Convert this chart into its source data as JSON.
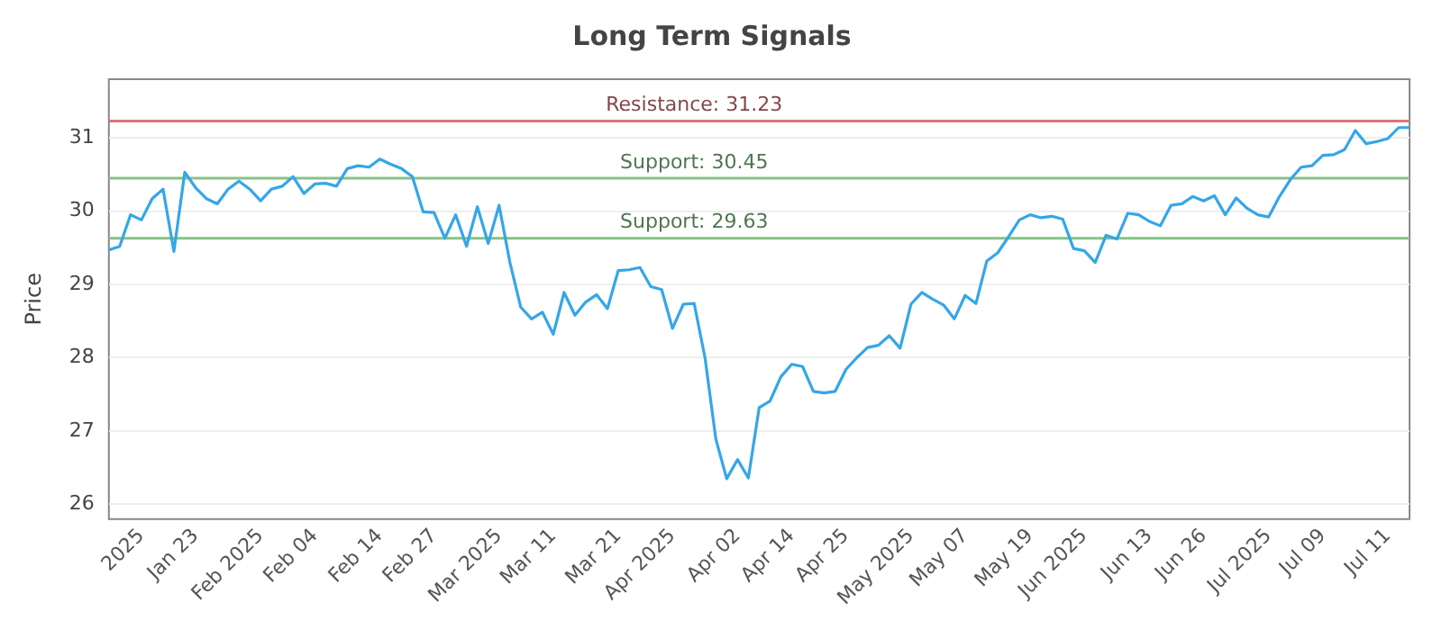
{
  "chart_data": {
    "type": "line",
    "title": "Long Term Signals",
    "ylabel": "Price",
    "categories": [
      null,
      null,
      null,
      "2025",
      null,
      null,
      null,
      null,
      "Jan 23",
      null,
      null,
      null,
      null,
      null,
      "Feb 2025",
      null,
      null,
      null,
      null,
      "Feb 04",
      null,
      null,
      null,
      null,
      null,
      "Feb 14",
      null,
      null,
      null,
      null,
      "Feb 27",
      null,
      null,
      null,
      null,
      null,
      "Mar 2025",
      null,
      null,
      null,
      null,
      "Mar 11",
      null,
      null,
      null,
      null,
      null,
      "Mar 21",
      null,
      null,
      null,
      null,
      "Apr 2025",
      null,
      null,
      null,
      null,
      null,
      "Apr 02",
      null,
      null,
      null,
      null,
      "Apr 14",
      null,
      null,
      null,
      null,
      "Apr 25",
      null,
      null,
      null,
      null,
      null,
      "May 2025",
      null,
      null,
      null,
      null,
      "May 07",
      null,
      null,
      null,
      null,
      null,
      "May 19",
      null,
      null,
      null,
      null,
      "Jun 2025",
      null,
      null,
      null,
      null,
      null,
      "Jun 13",
      null,
      null,
      null,
      null,
      "Jun 26",
      null,
      null,
      null,
      null,
      null,
      "Jul 2025",
      null,
      null,
      null,
      null,
      "Jul 09",
      null,
      null,
      null,
      null,
      null,
      "Jul 11",
      null,
      null
    ],
    "series": [
      {
        "color": "#35a6e8",
        "values": [
          29.47,
          29.52,
          29.95,
          29.88,
          30.17,
          30.3,
          29.45,
          30.53,
          30.32,
          30.17,
          30.1,
          30.3,
          30.41,
          30.3,
          30.14,
          30.3,
          30.34,
          30.47,
          30.24,
          30.37,
          30.38,
          30.34,
          30.58,
          30.62,
          30.6,
          30.71,
          30.64,
          30.58,
          30.47,
          29.99,
          29.98,
          29.63,
          29.95,
          29.52,
          30.06,
          29.56,
          30.08,
          29.3,
          28.69,
          28.53,
          28.62,
          28.32,
          28.89,
          28.58,
          28.76,
          28.86,
          28.67,
          29.19,
          29.2,
          29.23,
          28.97,
          28.93,
          28.4,
          28.73,
          28.74,
          28.0,
          26.89,
          26.35,
          26.61,
          26.36,
          27.32,
          27.41,
          27.74,
          27.91,
          27.88,
          27.54,
          27.52,
          27.54,
          27.84,
          28.0,
          28.14,
          28.17,
          28.3,
          28.13,
          28.73,
          28.89,
          28.8,
          28.72,
          28.53,
          28.85,
          28.74,
          29.32,
          29.43,
          29.65,
          29.88,
          29.95,
          29.91,
          29.93,
          29.89,
          29.49,
          29.46,
          29.3,
          29.67,
          29.62,
          29.97,
          29.95,
          29.86,
          29.8,
          30.08,
          30.1,
          30.2,
          30.14,
          30.21,
          29.95,
          30.18,
          30.04,
          29.95,
          29.92,
          30.2,
          30.43,
          30.6,
          30.62,
          30.76,
          30.77,
          30.84,
          31.1,
          30.92,
          30.95,
          30.99,
          31.14,
          31.14
        ]
      }
    ],
    "ylim": [
      25.8,
      31.8
    ],
    "yticks": [
      26,
      27,
      28,
      29,
      30,
      31
    ],
    "grid": "y",
    "legend": false,
    "marker": "none",
    "line_style": "solid",
    "ref_lines": [
      {
        "axis": "y",
        "value": 31.23,
        "label": "Resistance: 31.23",
        "color": "#d9777a"
      },
      {
        "axis": "y",
        "value": 30.45,
        "label": "Support: 30.45",
        "color": "#86c386"
      },
      {
        "axis": "y",
        "value": 29.63,
        "label": "Support: 29.63",
        "color": "#86c386"
      }
    ]
  }
}
